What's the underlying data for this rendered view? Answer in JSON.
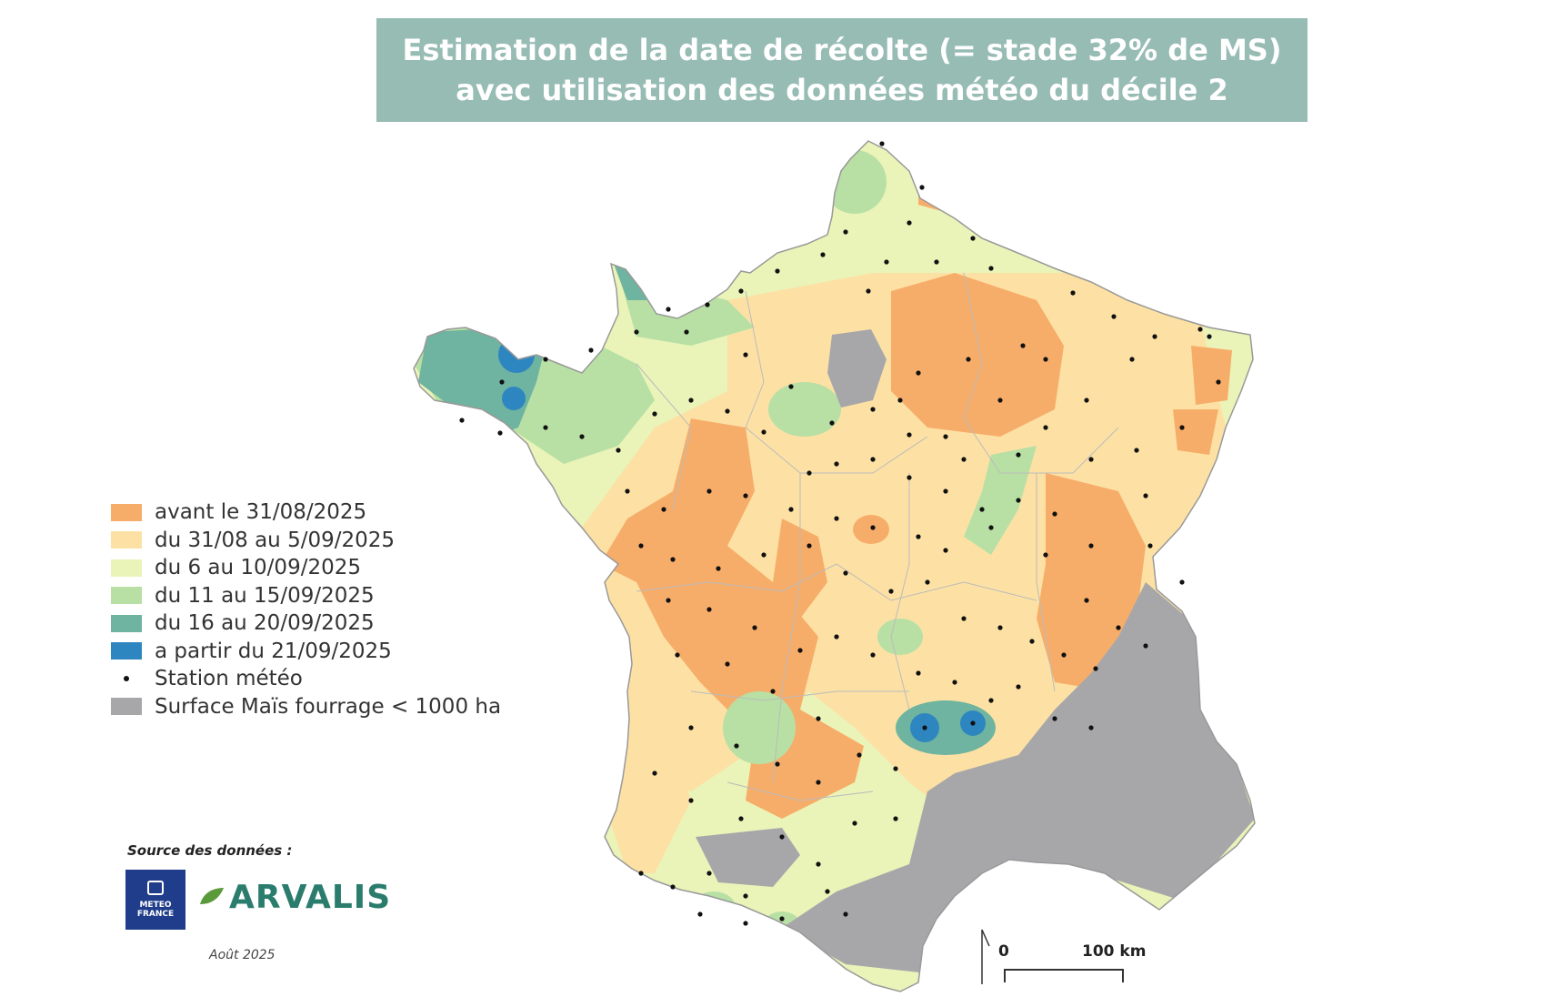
{
  "title": {
    "line1": "Estimation de la date de récolte (= stade 32% de MS)",
    "line2": "avec utilisation des données météo du décile 2"
  },
  "legend": {
    "items": [
      {
        "label": "avant le 31/08/2025",
        "color": "#f7ad6a"
      },
      {
        "label": "du 31/08 au 5/09/2025",
        "color": "#fde1a4"
      },
      {
        "label": "du 6 au 10/09/2025",
        "color": "#eaf3b8"
      },
      {
        "label": "du 11 au 15/09/2025",
        "color": "#b8e0a4"
      },
      {
        "label": "du 16 au 20/09/2025",
        "color": "#6fb4a0"
      },
      {
        "label": "a partir du 21/09/2025",
        "color": "#2e86c1"
      }
    ],
    "station_label": "Station météo",
    "surface_label": "Surface Maïs fourrage < 1000 ha",
    "surface_color": "#a7a7aa"
  },
  "source": {
    "label": "Source des données :",
    "meteo_france_logo": "METEO FRANCE",
    "arvalis_logo": "ARVALIS",
    "date": "Août 2025"
  },
  "scale": {
    "zero": "0",
    "distance": "100 km"
  }
}
